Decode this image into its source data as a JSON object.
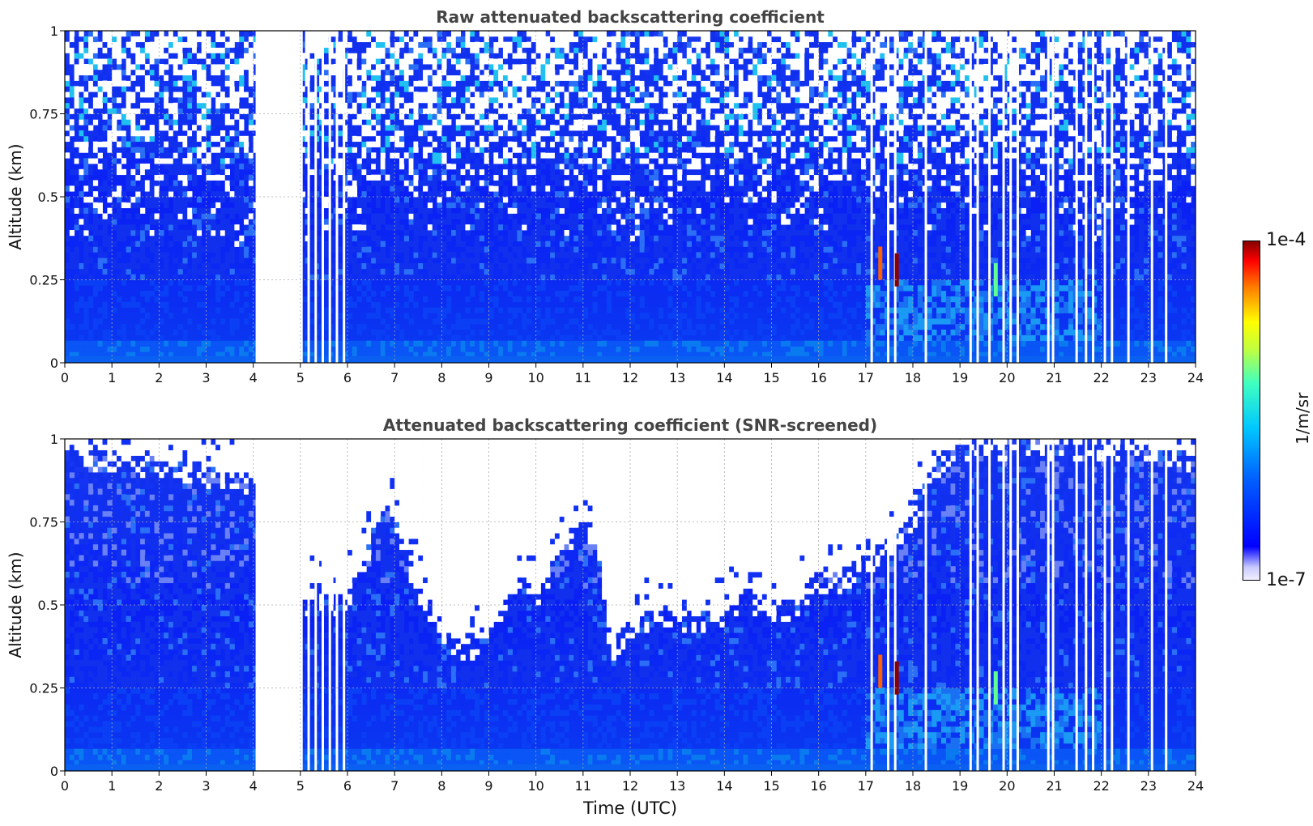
{
  "chart_data": [
    {
      "type": "heatmap",
      "title": "Raw attenuated backscattering coefficient",
      "xlabel": "",
      "ylabel": "Altitude (km)",
      "xlim": [
        0,
        24
      ],
      "ylim": [
        0,
        1
      ],
      "x_ticks": [
        "0",
        "1",
        "2",
        "3",
        "4",
        "5",
        "6",
        "7",
        "8",
        "9",
        "10",
        "11",
        "12",
        "13",
        "14",
        "15",
        "16",
        "17",
        "18",
        "19",
        "20",
        "21",
        "22",
        "23",
        "24"
      ],
      "y_ticks": [
        "0",
        "0.25",
        "0.5",
        "0.75",
        "1"
      ],
      "grid": true,
      "no_data_intervals": [
        [
          4.05,
          5.05
        ]
      ],
      "dropout_times": [
        5.15,
        5.3,
        5.45,
        5.6,
        5.75,
        5.9,
        17.1,
        17.45,
        17.6,
        18.25,
        19.2,
        19.35,
        19.6,
        19.9,
        20.05,
        20.2,
        20.85,
        20.95,
        21.45,
        21.65,
        21.8,
        22.05,
        22.2,
        22.55,
        23.05,
        23.35
      ],
      "color_scale": {
        "min": "1e-7",
        "max": "1e-4",
        "unit": "1/m/sr",
        "log": true
      },
      "features": [
        {
          "time": 17.65,
          "altitude": 0.28,
          "value": "1e-4"
        },
        {
          "time": 17.3,
          "altitude": 0.3,
          "value": "3e-5"
        },
        {
          "time": 19.75,
          "altitude": 0.25,
          "value": "1e-5"
        }
      ]
    },
    {
      "type": "heatmap",
      "title": "Attenuated backscattering coefficient (SNR-screened)",
      "xlabel": "Time (UTC)",
      "ylabel": "Altitude (km)",
      "xlim": [
        0,
        24
      ],
      "ylim": [
        0,
        1
      ],
      "x_ticks": [
        "0",
        "1",
        "2",
        "3",
        "4",
        "5",
        "6",
        "7",
        "8",
        "9",
        "10",
        "11",
        "12",
        "13",
        "14",
        "15",
        "16",
        "17",
        "18",
        "19",
        "20",
        "21",
        "22",
        "23",
        "24"
      ],
      "y_ticks": [
        "0",
        "0.25",
        "0.5",
        "0.75",
        "1"
      ],
      "grid": true,
      "no_data_intervals": [
        [
          4.05,
          5.05
        ]
      ],
      "dropout_times": [
        5.15,
        5.3,
        5.45,
        5.6,
        5.75,
        5.9,
        17.1,
        17.45,
        17.6,
        18.25,
        19.2,
        19.35,
        19.6,
        19.9,
        20.05,
        20.2,
        20.85,
        20.95,
        21.45,
        21.65,
        21.8,
        22.05,
        22.2,
        22.55,
        23.05,
        23.35
      ],
      "screening_height": [
        [
          0,
          0.98
        ],
        [
          0.5,
          0.97
        ],
        [
          1,
          0.96
        ],
        [
          1.5,
          0.95
        ],
        [
          2,
          0.94
        ],
        [
          2.5,
          0.93
        ],
        [
          3,
          0.92
        ],
        [
          3.5,
          0.9
        ],
        [
          4,
          0.88
        ],
        [
          5.1,
          0.5
        ],
        [
          5.3,
          0.58
        ],
        [
          5.6,
          0.52
        ],
        [
          6,
          0.55
        ],
        [
          6.3,
          0.62
        ],
        [
          6.6,
          0.75
        ],
        [
          6.9,
          0.82
        ],
        [
          7.2,
          0.68
        ],
        [
          7.5,
          0.58
        ],
        [
          7.8,
          0.5
        ],
        [
          8.1,
          0.42
        ],
        [
          8.5,
          0.38
        ],
        [
          9,
          0.45
        ],
        [
          9.3,
          0.5
        ],
        [
          9.6,
          0.58
        ],
        [
          10,
          0.55
        ],
        [
          10.4,
          0.64
        ],
        [
          10.8,
          0.72
        ],
        [
          11.1,
          0.78
        ],
        [
          11.4,
          0.6
        ],
        [
          11.6,
          0.38
        ],
        [
          12,
          0.46
        ],
        [
          12.5,
          0.49
        ],
        [
          13,
          0.47
        ],
        [
          13.5,
          0.48
        ],
        [
          14,
          0.5
        ],
        [
          14.5,
          0.55
        ],
        [
          15,
          0.5
        ],
        [
          15.5,
          0.52
        ],
        [
          16,
          0.6
        ],
        [
          16.5,
          0.6
        ],
        [
          17,
          0.65
        ],
        [
          17.5,
          0.7
        ],
        [
          18,
          0.78
        ],
        [
          18.3,
          0.88
        ],
        [
          18.6,
          0.96
        ],
        [
          19,
          0.99
        ],
        [
          20,
          1
        ],
        [
          21,
          1
        ],
        [
          22,
          1
        ],
        [
          23,
          0.99
        ],
        [
          24,
          0.95
        ]
      ],
      "color_scale": {
        "min": "1e-7",
        "max": "1e-4",
        "unit": "1/m/sr",
        "log": true
      },
      "features": [
        {
          "time": 17.65,
          "altitude": 0.28,
          "value": "1e-4"
        },
        {
          "time": 17.3,
          "altitude": 0.3,
          "value": "3e-5"
        },
        {
          "time": 19.75,
          "altitude": 0.25,
          "value": "1e-5"
        }
      ]
    }
  ],
  "colorbar": {
    "max_label": "1e-4",
    "min_label": "1e-7",
    "unit": "1/m/sr"
  }
}
